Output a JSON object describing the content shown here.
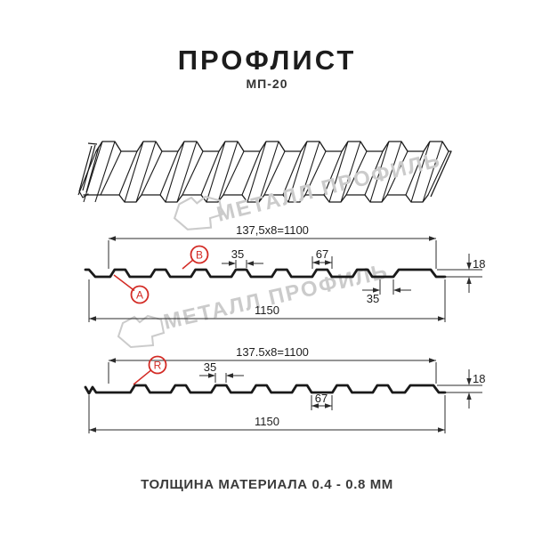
{
  "header": {
    "title": "ПРОФЛИСТ",
    "subtitle": "МП-20"
  },
  "watermark": {
    "brand": "МЕТАЛЛ ПРОФИЛЬ"
  },
  "section_front": {
    "module_dim": "137,5x8=1100",
    "crest_width": "35",
    "rib_width": "67",
    "profile_height": "18",
    "rib_bottom_width": "35",
    "overall_width": "1150",
    "marker_a": "A",
    "marker_b": "B"
  },
  "section_back": {
    "module_dim": "137.5x8=1100",
    "crest_width": "35",
    "valley_width": "67",
    "profile_height": "18",
    "overall_width": "1150",
    "marker_r": "R"
  },
  "footer": {
    "text": "ТОЛЩИНА МАТЕРИАЛА 0.4 - 0.8 ММ"
  },
  "colors": {
    "accent_red": "#d32b25",
    "line": "#1a1a1a",
    "dim_line": "#2b2b2b",
    "watermark": "#cbcbcb"
  }
}
